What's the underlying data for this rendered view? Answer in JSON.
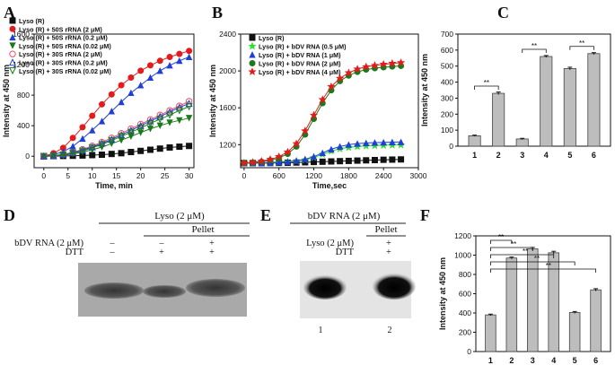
{
  "panels": {
    "A": {
      "letter": "A"
    },
    "B": {
      "letter": "B"
    },
    "C": {
      "letter": "C"
    },
    "D": {
      "letter": "D",
      "header": "Lyso (2 μM)",
      "pellet": "Pellet",
      "row1_label": "bDV RNA (2 μM)",
      "row2_label": "DTT",
      "row1": [
        "–",
        "–",
        "+"
      ],
      "row2": [
        "–",
        "+",
        "+"
      ]
    },
    "E": {
      "letter": "E",
      "header": "bDV RNA (2 μM)",
      "pellet": "Pellet",
      "row1_label": "Lyso (2 μM)",
      "row2_label": "DTT",
      "row1": [
        "+"
      ],
      "row2": [
        "+"
      ],
      "lanes": [
        "1",
        "2"
      ]
    },
    "F": {
      "letter": "F"
    }
  },
  "colors": {
    "black": "#111111",
    "red": "#e41a1c",
    "blue": "#1f3fd6",
    "green": "#1a7a1a",
    "lightgreen": "#33dd33",
    "pink": "#e8506a",
    "bar": "#bdbdbd"
  },
  "chart_data": [
    {
      "id": "A",
      "type": "line",
      "xlabel": "Time, min",
      "ylabel": "Intensity at 450 nm",
      "xlim": [
        -2,
        31
      ],
      "ylim": [
        -150,
        1600
      ],
      "xticks": [
        0,
        5,
        10,
        15,
        20,
        25,
        30
      ],
      "yticks": [
        0,
        400,
        800,
        1200,
        1600
      ],
      "x": [
        0,
        2,
        4,
        6,
        8,
        10,
        12,
        14,
        16,
        18,
        20,
        22,
        24,
        26,
        28,
        30
      ],
      "series": [
        {
          "name": "Lyso (R)",
          "color": "#111111",
          "marker": "square",
          "values": [
            0,
            2,
            4,
            6,
            10,
            15,
            20,
            30,
            40,
            55,
            70,
            85,
            100,
            115,
            125,
            135
          ]
        },
        {
          "name": "Lyso (R) + 50S rRNA (2 μM)",
          "color": "#e41a1c",
          "marker": "circle",
          "values": [
            0,
            40,
            110,
            240,
            380,
            530,
            680,
            810,
            930,
            1030,
            1120,
            1190,
            1250,
            1300,
            1340,
            1380
          ]
        },
        {
          "name": "Lyso (R) + 50S rRNA (0.2 μM)",
          "color": "#1f3fd6",
          "marker": "triangle",
          "values": [
            0,
            20,
            60,
            130,
            230,
            340,
            460,
            590,
            710,
            830,
            930,
            1030,
            1120,
            1190,
            1250,
            1300
          ]
        },
        {
          "name": "Lyso (R) + 50S rRNA (0.02 μM)",
          "color": "#1a7a1a",
          "marker": "triangle-down",
          "values": [
            0,
            5,
            15,
            30,
            55,
            85,
            120,
            165,
            210,
            260,
            310,
            360,
            400,
            440,
            470,
            500
          ]
        },
        {
          "name": "Lyso (R) + 30S rRNA (2 μM)",
          "color": "#e8506a",
          "marker": "circle-open",
          "values": [
            0,
            8,
            25,
            50,
            90,
            135,
            185,
            240,
            300,
            360,
            420,
            480,
            540,
            600,
            660,
            720
          ]
        },
        {
          "name": "Lyso (R) + 30S rRNA (0.2 μM)",
          "color": "#1f3fd6",
          "marker": "triangle-open",
          "values": [
            0,
            7,
            22,
            45,
            80,
            120,
            170,
            220,
            280,
            340,
            400,
            460,
            520,
            580,
            640,
            690
          ]
        },
        {
          "name": "Lyso (R) + 30S rRNA (0.02 μM)",
          "color": "#1a7a1a",
          "marker": "triangle-down-open",
          "values": [
            0,
            6,
            20,
            40,
            70,
            110,
            155,
            205,
            260,
            315,
            370,
            430,
            485,
            540,
            600,
            650
          ]
        }
      ]
    },
    {
      "id": "B",
      "type": "line",
      "xlabel": "Time,sec",
      "ylabel": "Intensity at 450 nm",
      "xlim": [
        -60,
        3000
      ],
      "ylim": [
        950,
        2400
      ],
      "xticks": [
        0,
        600,
        1200,
        1800,
        2400,
        3000
      ],
      "yticks": [
        1200,
        1600,
        2000,
        2400
      ],
      "x": [
        0,
        150,
        300,
        450,
        600,
        750,
        900,
        1050,
        1200,
        1350,
        1500,
        1650,
        1800,
        1950,
        2100,
        2250,
        2400,
        2550,
        2700
      ],
      "series": [
        {
          "name": "Lyso (R)",
          "color": "#111111",
          "marker": "square",
          "values": [
            1000,
            1000,
            1000,
            1001,
            1002,
            1004,
            1006,
            1009,
            1012,
            1015,
            1018,
            1021,
            1024,
            1027,
            1030,
            1033,
            1036,
            1038,
            1040
          ]
        },
        {
          "name": "Lyso (R) + bDV RNA (0.5 μM)",
          "color": "#33dd33",
          "marker": "star",
          "values": [
            1000,
            1000,
            1002,
            1004,
            1007,
            1012,
            1020,
            1035,
            1060,
            1095,
            1130,
            1155,
            1170,
            1180,
            1186,
            1190,
            1193,
            1195,
            1197
          ]
        },
        {
          "name": "Lyso (R) + bDV RNA (1 μM)",
          "color": "#1f3fd6",
          "marker": "triangle",
          "values": [
            1000,
            1000,
            1002,
            1005,
            1009,
            1015,
            1025,
            1042,
            1070,
            1110,
            1150,
            1180,
            1200,
            1212,
            1218,
            1222,
            1225,
            1227,
            1229
          ]
        },
        {
          "name": "Lyso (R) + bDV RNA (2 μM)",
          "color": "#1a7a1a",
          "marker": "circle",
          "values": [
            1000,
            1005,
            1015,
            1030,
            1055,
            1100,
            1180,
            1310,
            1480,
            1650,
            1790,
            1890,
            1950,
            1990,
            2015,
            2030,
            2040,
            2048,
            2055
          ]
        },
        {
          "name": "Lyso (R) + bDV RNA (4 μM)",
          "color": "#e41a1c",
          "marker": "star",
          "values": [
            1000,
            1008,
            1020,
            1040,
            1070,
            1120,
            1210,
            1350,
            1520,
            1690,
            1830,
            1920,
            1980,
            2020,
            2045,
            2060,
            2072,
            2082,
            2090
          ]
        }
      ]
    },
    {
      "id": "C",
      "type": "bar",
      "ylabel": "Intensity at 450 nm",
      "categories": [
        "1",
        "2",
        "3",
        "4",
        "5",
        "6"
      ],
      "values": [
        65,
        330,
        45,
        560,
        485,
        578
      ],
      "errors": [
        4,
        8,
        4,
        6,
        8,
        6
      ],
      "ylim": [
        0,
        700
      ],
      "yticks": [
        0,
        100,
        200,
        300,
        400,
        500,
        600,
        700
      ],
      "significance": [
        {
          "pair": [
            1,
            2
          ],
          "label": "**"
        },
        {
          "pair": [
            3,
            4
          ],
          "label": "**"
        },
        {
          "pair": [
            5,
            6
          ],
          "label": "**"
        }
      ]
    },
    {
      "id": "F",
      "type": "bar",
      "ylabel": "Intensity at 450 nm",
      "categories": [
        "1",
        "2",
        "3",
        "4",
        "5",
        "6"
      ],
      "values": [
        380,
        970,
        1065,
        1025,
        405,
        640
      ],
      "errors": [
        8,
        10,
        15,
        15,
        10,
        12
      ],
      "ylim": [
        0,
        1200
      ],
      "yticks": [
        0,
        200,
        400,
        600,
        800,
        1000,
        1200
      ],
      "significance": [
        {
          "pair": [
            1,
            2
          ],
          "label": "**"
        },
        {
          "pair": [
            1,
            3
          ],
          "label": "**"
        },
        {
          "pair": [
            1,
            4
          ],
          "label": "**"
        },
        {
          "pair": [
            1,
            5
          ],
          "label": "**"
        },
        {
          "pair": [
            1,
            6
          ],
          "label": "**"
        }
      ]
    }
  ]
}
